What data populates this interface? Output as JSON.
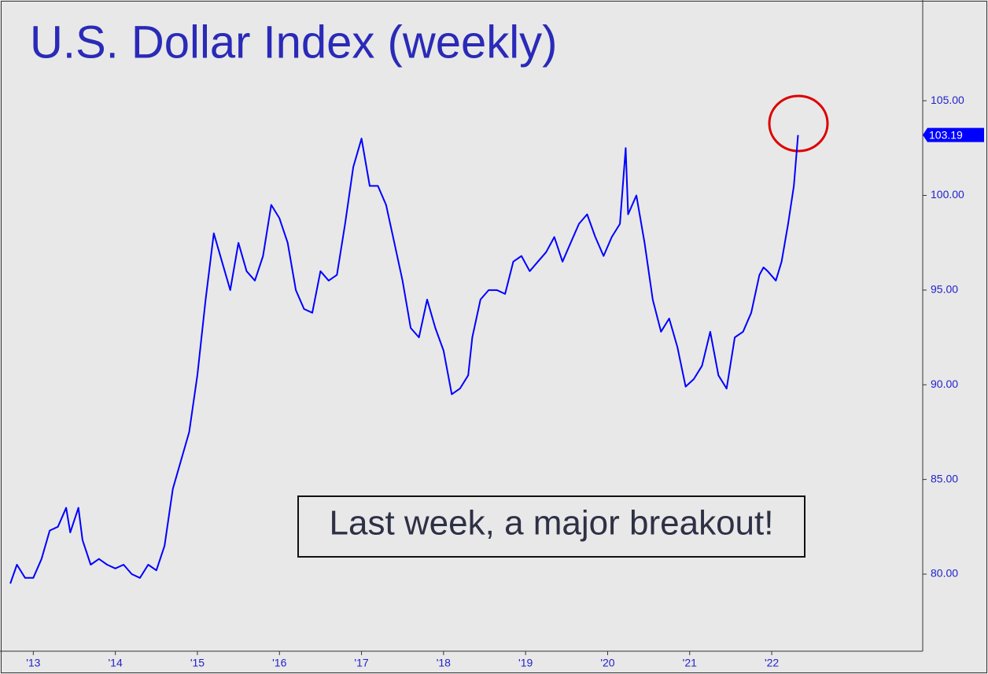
{
  "chart_data": {
    "type": "line",
    "title": "U.S. Dollar Index (weekly)",
    "annotation": "Last week, a major breakout!",
    "x": [
      2012.72,
      2012.8,
      2012.9,
      2013.0,
      2013.1,
      2013.2,
      2013.3,
      2013.4,
      2013.45,
      2013.55,
      2013.6,
      2013.7,
      2013.8,
      2013.9,
      2014.0,
      2014.1,
      2014.2,
      2014.3,
      2014.4,
      2014.5,
      2014.6,
      2014.7,
      2014.8,
      2014.9,
      2015.0,
      2015.1,
      2015.2,
      2015.3,
      2015.4,
      2015.5,
      2015.6,
      2015.7,
      2015.8,
      2015.9,
      2016.0,
      2016.1,
      2016.2,
      2016.3,
      2016.4,
      2016.5,
      2016.6,
      2016.7,
      2016.8,
      2016.9,
      2017.0,
      2017.1,
      2017.2,
      2017.3,
      2017.4,
      2017.5,
      2017.6,
      2017.7,
      2017.8,
      2017.9,
      2018.0,
      2018.1,
      2018.2,
      2018.3,
      2018.35,
      2018.45,
      2018.55,
      2018.65,
      2018.75,
      2018.85,
      2018.95,
      2019.05,
      2019.15,
      2019.25,
      2019.35,
      2019.45,
      2019.55,
      2019.65,
      2019.75,
      2019.85,
      2019.95,
      2020.05,
      2020.15,
      2020.22,
      2020.25,
      2020.35,
      2020.45,
      2020.55,
      2020.65,
      2020.75,
      2020.85,
      2020.95,
      2021.05,
      2021.15,
      2021.25,
      2021.35,
      2021.45,
      2021.55,
      2021.65,
      2021.75,
      2021.85,
      2021.9,
      2021.95,
      2022.05,
      2022.12,
      2022.2,
      2022.27,
      2022.32
    ],
    "series": [
      {
        "name": "U.S. Dollar Index",
        "color": "#0000ff",
        "values": [
          79.5,
          80.5,
          79.8,
          79.8,
          80.8,
          82.3,
          82.5,
          83.5,
          82.2,
          83.5,
          81.8,
          80.5,
          80.8,
          80.5,
          80.3,
          80.5,
          80.0,
          79.8,
          80.5,
          80.2,
          81.5,
          84.5,
          86.0,
          87.5,
          90.5,
          94.5,
          98.0,
          96.5,
          95.0,
          97.5,
          96.0,
          95.5,
          96.8,
          99.5,
          98.8,
          97.5,
          95.0,
          94.0,
          93.8,
          96.0,
          95.5,
          95.8,
          98.5,
          101.5,
          103.0,
          100.5,
          100.5,
          99.5,
          97.5,
          95.5,
          93.0,
          92.5,
          94.5,
          93.0,
          91.8,
          89.5,
          89.8,
          90.5,
          92.5,
          94.5,
          95.0,
          95.0,
          94.8,
          96.5,
          96.8,
          96.0,
          96.5,
          97.0,
          97.8,
          96.5,
          97.5,
          98.5,
          99.0,
          97.8,
          96.8,
          97.8,
          98.5,
          102.5,
          99.0,
          100.0,
          97.5,
          94.5,
          92.8,
          93.5,
          92.0,
          89.9,
          90.3,
          91.0,
          92.8,
          90.5,
          89.8,
          92.5,
          92.8,
          93.8,
          95.8,
          96.2,
          96.0,
          95.5,
          96.5,
          98.5,
          100.5,
          103.19
        ]
      }
    ],
    "xlim": [
      2012.69,
      2023.84
    ],
    "xticks": [
      {
        "value": 2013,
        "label": "'13"
      },
      {
        "value": 2014,
        "label": "'14"
      },
      {
        "value": 2015,
        "label": "'15"
      },
      {
        "value": 2016,
        "label": "'16"
      },
      {
        "value": 2017,
        "label": "'17"
      },
      {
        "value": 2018,
        "label": "'18"
      },
      {
        "value": 2019,
        "label": "'19"
      },
      {
        "value": 2020,
        "label": "'20"
      },
      {
        "value": 2021,
        "label": "'21"
      },
      {
        "value": 2022,
        "label": "'22"
      }
    ],
    "ylim": [
      75.93,
      110.32
    ],
    "yticks": [
      {
        "value": 80,
        "label": "80.00"
      },
      {
        "value": 85,
        "label": "85.00"
      },
      {
        "value": 90,
        "label": "90.00"
      },
      {
        "value": 95,
        "label": "95.00"
      },
      {
        "value": 100,
        "label": "100.00"
      },
      {
        "value": 105,
        "label": "105.00"
      }
    ]
  }
}
